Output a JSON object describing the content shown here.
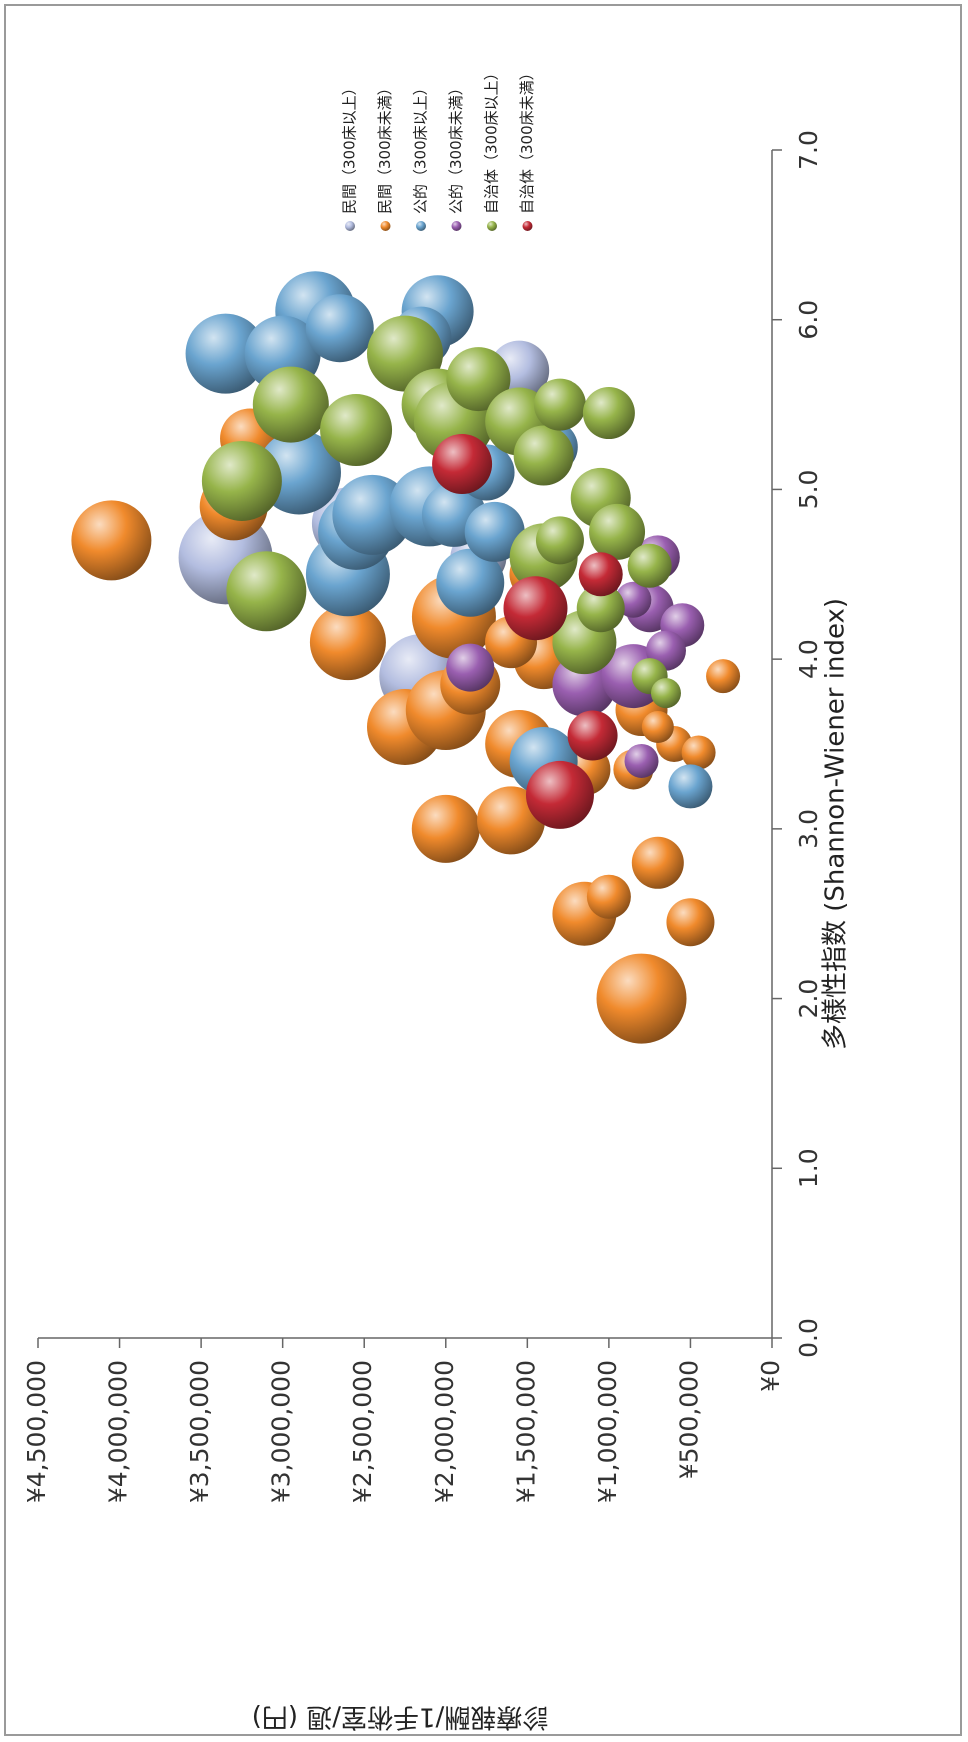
{
  "chart_data": {
    "type": "bubble",
    "orientation": "rotated 90° clockwise on page",
    "xlabel": "多様性指数 (Shannon-Wiener index)",
    "ylabel": "診療報酬/1手術室/週 (円)",
    "xlim": [
      0,
      7
    ],
    "ylim": [
      0,
      4500000
    ],
    "xticks": [
      "0.0",
      "1.0",
      "2.0",
      "3.0",
      "4.0",
      "5.0",
      "6.0",
      "7.0"
    ],
    "yticks": [
      "¥0",
      "¥500,000",
      "¥1,000,000",
      "¥1,500,000",
      "¥2,000,000",
      "¥2,500,000",
      "¥3,000,000",
      "¥3,500,000",
      "¥4,000,000",
      "¥4,500,000"
    ],
    "grid": false,
    "legend_position": "top-right",
    "colors": {
      "minkan_large": "#b3bde0",
      "minkan_small": "#f08a2c",
      "kouteki_large": "#6aa4cf",
      "kouteki_small": "#9a5fb0",
      "jichitai_large": "#96b44a",
      "jichitai_small": "#c42a36"
    },
    "series": [
      {
        "name": "民間（300床以上）",
        "color_key": "minkan_large",
        "points": [
          {
            "x": 4.6,
            "y": 3350000,
            "r": 47
          },
          {
            "x": 3.9,
            "y": 2150000,
            "r": 42
          },
          {
            "x": 4.8,
            "y": 2600000,
            "r": 36
          },
          {
            "x": 5.7,
            "y": 1550000,
            "r": 30
          },
          {
            "x": 4.6,
            "y": 1800000,
            "r": 28
          }
        ]
      },
      {
        "name": "民間（300床未満）",
        "color_key": "minkan_small",
        "points": [
          {
            "x": 4.7,
            "y": 4050000,
            "r": 40
          },
          {
            "x": 4.9,
            "y": 3300000,
            "r": 34
          },
          {
            "x": 5.3,
            "y": 3200000,
            "r": 30
          },
          {
            "x": 4.1,
            "y": 2600000,
            "r": 38
          },
          {
            "x": 4.25,
            "y": 1950000,
            "r": 42
          },
          {
            "x": 3.6,
            "y": 2250000,
            "r": 38
          },
          {
            "x": 3.7,
            "y": 2000000,
            "r": 40
          },
          {
            "x": 3.85,
            "y": 1850000,
            "r": 30
          },
          {
            "x": 3.5,
            "y": 1550000,
            "r": 34
          },
          {
            "x": 4.0,
            "y": 1400000,
            "r": 30
          },
          {
            "x": 4.1,
            "y": 1600000,
            "r": 26
          },
          {
            "x": 4.5,
            "y": 1450000,
            "r": 26
          },
          {
            "x": 3.0,
            "y": 2000000,
            "r": 34
          },
          {
            "x": 3.05,
            "y": 1600000,
            "r": 34
          },
          {
            "x": 3.35,
            "y": 1150000,
            "r": 26
          },
          {
            "x": 3.35,
            "y": 850000,
            "r": 20
          },
          {
            "x": 2.8,
            "y": 700000,
            "r": 26
          },
          {
            "x": 2.5,
            "y": 1150000,
            "r": 32
          },
          {
            "x": 2.6,
            "y": 1000000,
            "r": 22
          },
          {
            "x": 2.45,
            "y": 500000,
            "r": 24
          },
          {
            "x": 2.0,
            "y": 800000,
            "r": 45
          },
          {
            "x": 3.7,
            "y": 800000,
            "r": 26
          },
          {
            "x": 3.5,
            "y": 600000,
            "r": 18
          },
          {
            "x": 3.45,
            "y": 450000,
            "r": 17
          },
          {
            "x": 3.9,
            "y": 300000,
            "r": 17
          },
          {
            "x": 3.6,
            "y": 700000,
            "r": 16
          }
        ]
      },
      {
        "name": "公的（300床以上）",
        "color_key": "kouteki_large",
        "points": [
          {
            "x": 6.05,
            "y": 2800000,
            "r": 40
          },
          {
            "x": 5.8,
            "y": 3350000,
            "r": 40
          },
          {
            "x": 5.8,
            "y": 3000000,
            "r": 38
          },
          {
            "x": 5.95,
            "y": 2650000,
            "r": 34
          },
          {
            "x": 6.05,
            "y": 2050000,
            "r": 36
          },
          {
            "x": 5.9,
            "y": 2150000,
            "r": 30
          },
          {
            "x": 5.1,
            "y": 2900000,
            "r": 42
          },
          {
            "x": 4.5,
            "y": 2600000,
            "r": 42
          },
          {
            "x": 4.75,
            "y": 2550000,
            "r": 38
          },
          {
            "x": 4.85,
            "y": 2450000,
            "r": 40
          },
          {
            "x": 4.9,
            "y": 2100000,
            "r": 40
          },
          {
            "x": 4.85,
            "y": 1950000,
            "r": 32
          },
          {
            "x": 4.45,
            "y": 1850000,
            "r": 34
          },
          {
            "x": 4.75,
            "y": 1700000,
            "r": 30
          },
          {
            "x": 5.1,
            "y": 1750000,
            "r": 28
          },
          {
            "x": 5.25,
            "y": 1350000,
            "r": 26
          },
          {
            "x": 3.4,
            "y": 1400000,
            "r": 34
          },
          {
            "x": 3.25,
            "y": 500000,
            "r": 22
          }
        ]
      },
      {
        "name": "公的（300床未満）",
        "color_key": "kouteki_small",
        "points": [
          {
            "x": 3.85,
            "y": 1150000,
            "r": 32
          },
          {
            "x": 3.9,
            "y": 850000,
            "r": 32
          },
          {
            "x": 3.95,
            "y": 1850000,
            "r": 24
          },
          {
            "x": 4.3,
            "y": 750000,
            "r": 24
          },
          {
            "x": 4.2,
            "y": 550000,
            "r": 22
          },
          {
            "x": 4.05,
            "y": 650000,
            "r": 20
          },
          {
            "x": 4.6,
            "y": 700000,
            "r": 22
          },
          {
            "x": 4.45,
            "y": 1050000,
            "r": 18
          },
          {
            "x": 4.35,
            "y": 850000,
            "r": 18
          },
          {
            "x": 3.4,
            "y": 800000,
            "r": 17
          }
        ]
      },
      {
        "name": "自治体（300床以上）",
        "color_key": "jichitai_large",
        "points": [
          {
            "x": 5.05,
            "y": 3250000,
            "r": 40
          },
          {
            "x": 4.4,
            "y": 3100000,
            "r": 40
          },
          {
            "x": 5.5,
            "y": 2950000,
            "r": 38
          },
          {
            "x": 5.35,
            "y": 2550000,
            "r": 36
          },
          {
            "x": 5.8,
            "y": 2250000,
            "r": 38
          },
          {
            "x": 5.5,
            "y": 2050000,
            "r": 36
          },
          {
            "x": 5.4,
            "y": 1950000,
            "r": 40
          },
          {
            "x": 5.65,
            "y": 1800000,
            "r": 32
          },
          {
            "x": 5.4,
            "y": 1550000,
            "r": 34
          },
          {
            "x": 5.2,
            "y": 1400000,
            "r": 30
          },
          {
            "x": 5.5,
            "y": 1300000,
            "r": 26
          },
          {
            "x": 5.45,
            "y": 1000000,
            "r": 26
          },
          {
            "x": 4.95,
            "y": 1050000,
            "r": 30
          },
          {
            "x": 4.75,
            "y": 950000,
            "r": 28
          },
          {
            "x": 4.6,
            "y": 1400000,
            "r": 34
          },
          {
            "x": 4.7,
            "y": 1300000,
            "r": 24
          },
          {
            "x": 4.1,
            "y": 1150000,
            "r": 32
          },
          {
            "x": 4.3,
            "y": 1050000,
            "r": 24
          },
          {
            "x": 4.55,
            "y": 750000,
            "r": 22
          },
          {
            "x": 3.9,
            "y": 750000,
            "r": 18
          },
          {
            "x": 3.8,
            "y": 650000,
            "r": 15
          }
        ]
      },
      {
        "name": "自治体（300床未満）",
        "color_key": "jichitai_small",
        "points": [
          {
            "x": 5.15,
            "y": 1900000,
            "r": 30
          },
          {
            "x": 4.3,
            "y": 1450000,
            "r": 32
          },
          {
            "x": 4.5,
            "y": 1050000,
            "r": 22
          },
          {
            "x": 3.55,
            "y": 1100000,
            "r": 25
          },
          {
            "x": 3.2,
            "y": 1300000,
            "r": 34
          }
        ]
      }
    ]
  }
}
